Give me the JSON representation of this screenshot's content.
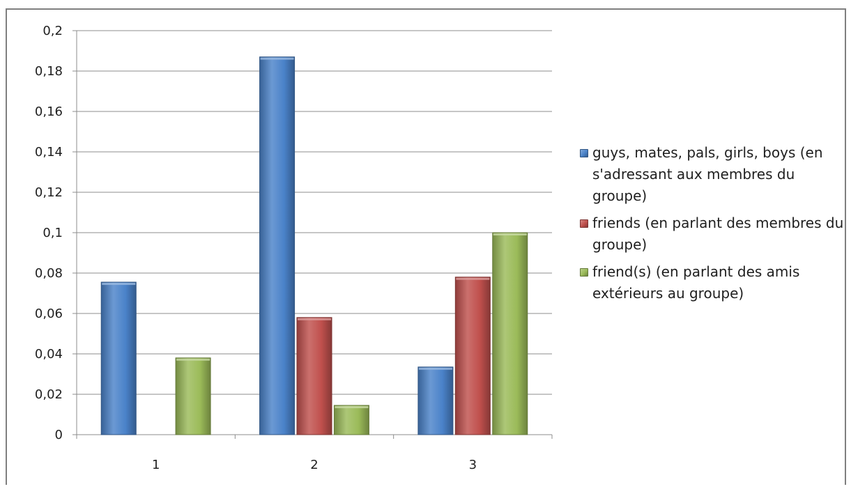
{
  "chart_data": {
    "type": "bar",
    "categories": [
      "1",
      "2",
      "3"
    ],
    "series": [
      {
        "name": "guys, mates, pals, girls, boys (en s'adressant aux membres du groupe)",
        "values": [
          0.0755,
          0.187,
          0.0335
        ],
        "color": "#4a82c9"
      },
      {
        "name": "friends (en parlant des membres du groupe)",
        "values": [
          null,
          0.058,
          0.078
        ],
        "color": "#c0504d"
      },
      {
        "name": "friend(s) (en parlant des amis extérieurs au groupe)",
        "values": [
          0.038,
          0.0145,
          0.1
        ],
        "color": "#9bbb59"
      }
    ],
    "y_ticks": [
      "0",
      "0,02",
      "0,04",
      "0,06",
      "0,08",
      "0,1",
      "0,12",
      "0,14",
      "0,16",
      "0,18",
      "0,2"
    ],
    "ylim": [
      0,
      0.2
    ],
    "grid": true,
    "legend_position": "right"
  }
}
